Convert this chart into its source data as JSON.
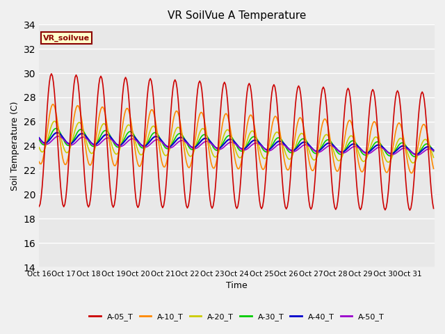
{
  "title": "VR SoilVue A Temperature",
  "ylabel": "Soil Temperature (C)",
  "xlabel": "Time",
  "legend_label": "VR_soilvue",
  "ylim": [
    14,
    34
  ],
  "yticks": [
    14,
    16,
    18,
    20,
    22,
    24,
    26,
    28,
    30,
    32,
    34
  ],
  "xtick_labels": [
    "Oct 16",
    "Oct 17",
    "Oct 18",
    "Oct 19",
    "Oct 20",
    "Oct 21",
    "Oct 22",
    "Oct 23",
    "Oct 24",
    "Oct 25",
    "Oct 26",
    "Oct 27",
    "Oct 28",
    "Oct 29",
    "Oct 30",
    "Oct 31"
  ],
  "series_colors": {
    "A-05_T": "#cc0000",
    "A-10_T": "#ff8800",
    "A-20_T": "#cccc00",
    "A-30_T": "#00cc00",
    "A-40_T": "#0000cc",
    "A-50_T": "#9900cc"
  },
  "background_color": "#e8e8e8",
  "fig_bg_color": "#f0f0f0",
  "grid_color": "#ffffff"
}
